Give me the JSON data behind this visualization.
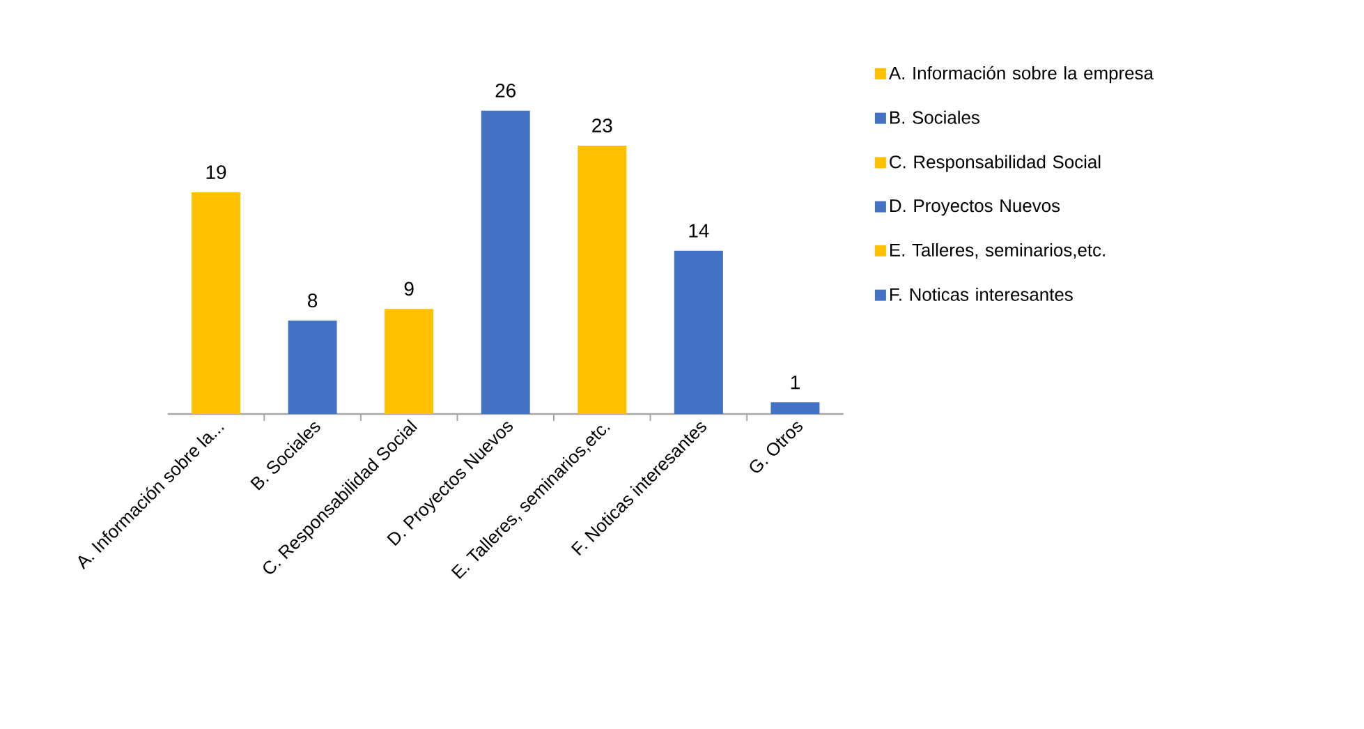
{
  "chart_data": {
    "type": "bar",
    "categories": [
      "A. Información sobre la...",
      "B. Sociales",
      "C. Responsabilidad  Social",
      "D. Proyectos Nuevos",
      "E. Talleres, seminarios,etc.",
      "F. Noticas interesantes",
      "G. Otros"
    ],
    "series": [
      {
        "name": "A. Información sobre la empresa",
        "color": "#ffc000",
        "values": [
          19,
          null,
          null,
          null,
          null,
          null,
          null
        ]
      },
      {
        "name": "B. Sociales",
        "color": "#4472c4",
        "values": [
          null,
          8,
          null,
          null,
          null,
          null,
          null
        ]
      },
      {
        "name": "C. Responsabilidad  Social",
        "color": "#ffc000",
        "values": [
          null,
          null,
          9,
          null,
          null,
          null,
          null
        ]
      },
      {
        "name": "D. Proyectos Nuevos",
        "color": "#4472c4",
        "values": [
          null,
          null,
          null,
          26,
          null,
          null,
          null
        ]
      },
      {
        "name": "E. Talleres, seminarios,etc.",
        "color": "#ffc000",
        "values": [
          null,
          null,
          null,
          null,
          23,
          null,
          null
        ]
      },
      {
        "name": "F. Noticas interesantes",
        "color": "#4472c4",
        "values": [
          null,
          null,
          null,
          null,
          null,
          14,
          null
        ]
      },
      {
        "color": "#4472c4",
        "values": [
          null,
          null,
          null,
          null,
          null,
          null,
          1
        ]
      }
    ],
    "data_labels": true,
    "legend": "right"
  }
}
